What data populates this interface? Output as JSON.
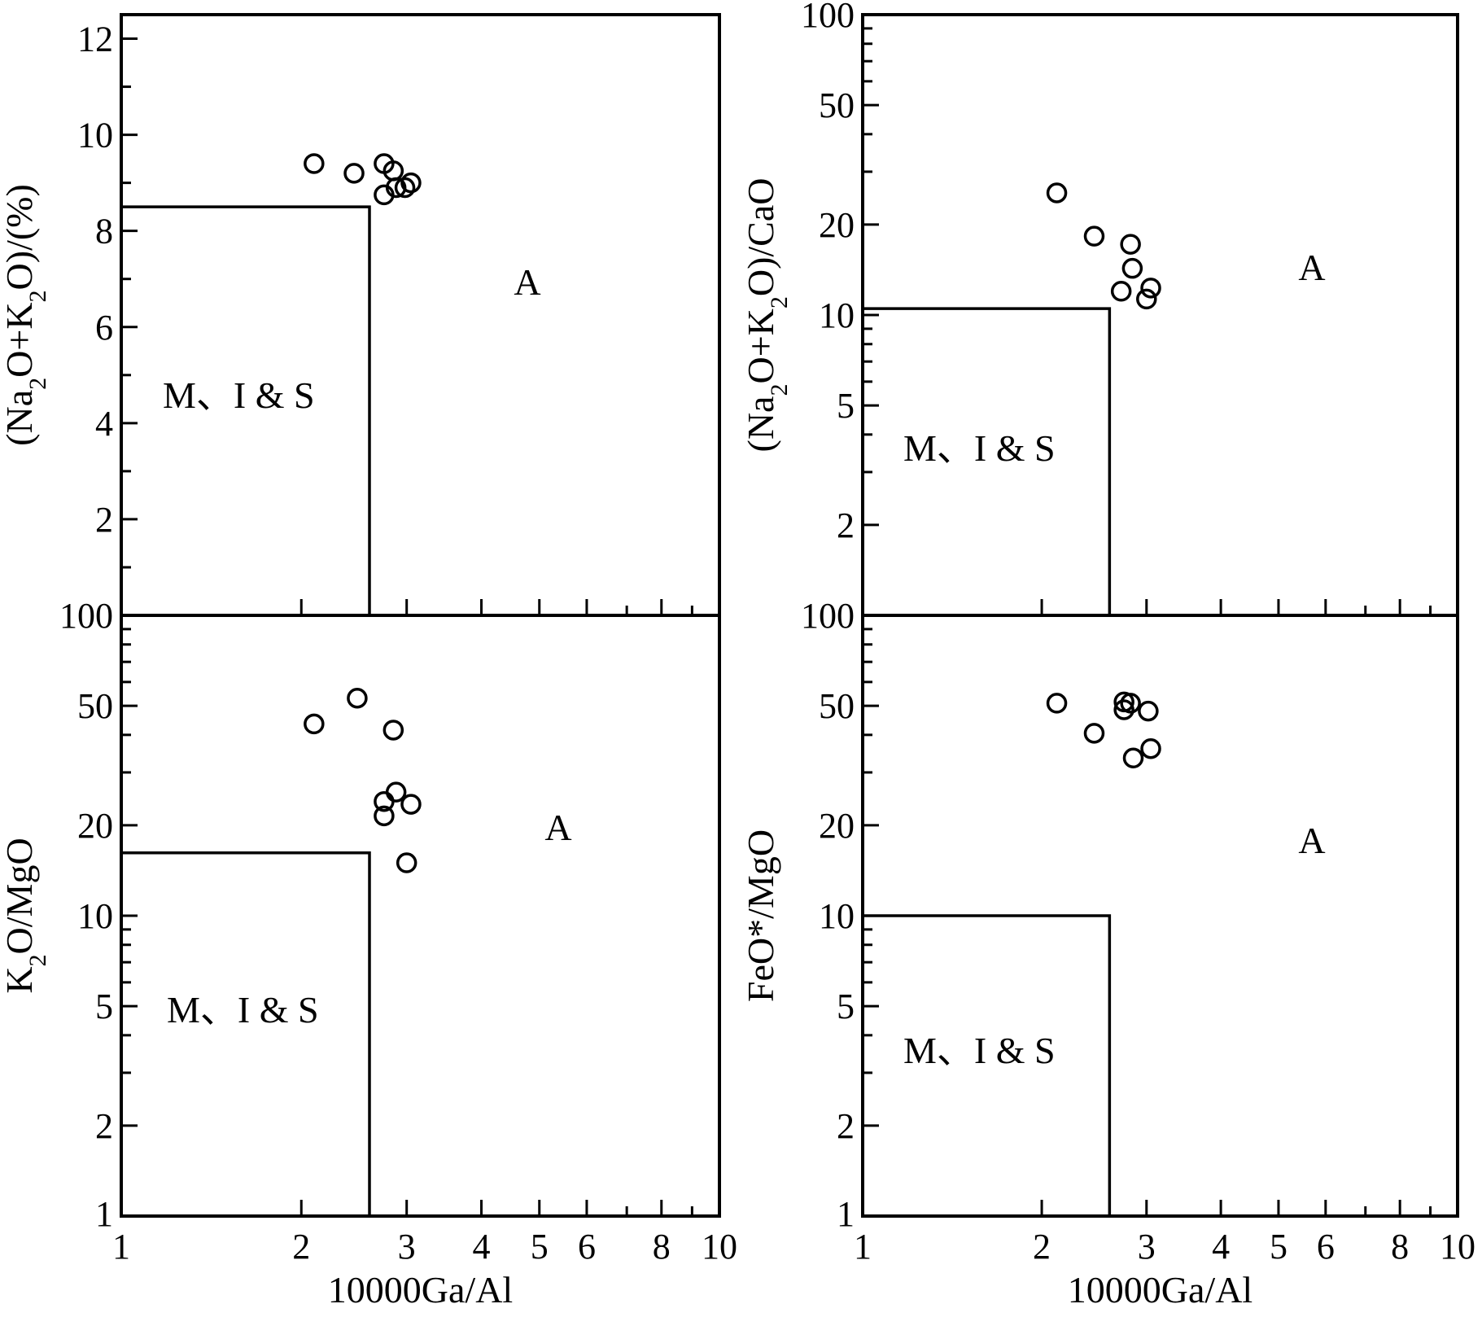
{
  "chart_data": [
    {
      "id": "top-left",
      "type": "scatter",
      "xscale": "log",
      "xlim": [
        1,
        10
      ],
      "yscale": "linear",
      "ylim": [
        0,
        12.5
      ],
      "ylabel": "(Na2O+K2O)/(%)",
      "xticks": [],
      "yticks": [
        {
          "v": 2,
          "label": "2"
        },
        {
          "v": 4,
          "label": "4"
        },
        {
          "v": 6,
          "label": "6"
        },
        {
          "v": 8,
          "label": "8"
        },
        {
          "v": 10,
          "label": "10"
        },
        {
          "v": 12,
          "label": "12"
        }
      ],
      "yminor": [
        1,
        3,
        5,
        7,
        9,
        11
      ],
      "boundary": {
        "x": 2.6,
        "y": 8.5
      },
      "fields": [
        {
          "label": "M、I & S",
          "x": 1.62,
          "y": 4.3
        },
        {
          "label": "A",
          "x": 5.4,
          "y": 6.7
        }
      ],
      "points": [
        {
          "x": 2.1,
          "y": 9.4
        },
        {
          "x": 2.45,
          "y": 9.2
        },
        {
          "x": 2.75,
          "y": 9.4
        },
        {
          "x": 2.85,
          "y": 9.25
        },
        {
          "x": 2.88,
          "y": 8.9
        },
        {
          "x": 2.75,
          "y": 8.75
        },
        {
          "x": 2.98,
          "y": 8.9
        },
        {
          "x": 3.05,
          "y": 9.0
        }
      ]
    },
    {
      "id": "top-right",
      "type": "scatter",
      "xscale": "log",
      "xlim": [
        1,
        10
      ],
      "yscale": "log",
      "ylim": [
        1,
        100
      ],
      "ylabel": "(Na2O+K2O)/CaO",
      "xticks": [],
      "yticks": [
        {
          "v": 2,
          "label": "2"
        },
        {
          "v": 5,
          "label": "5"
        },
        {
          "v": 10,
          "label": "10"
        },
        {
          "v": 20,
          "label": "20"
        },
        {
          "v": 50,
          "label": "50"
        },
        {
          "v": 100,
          "label": "100"
        }
      ],
      "boundary": {
        "x": 2.6,
        "y": 10.5
      },
      "fields": [
        {
          "label": "M、I & S",
          "x": 1.62,
          "y": 3.8
        },
        {
          "label": "A",
          "x": 5.7,
          "y": 13.5
        }
      ],
      "points": [
        {
          "x": 2.12,
          "y": 25.5
        },
        {
          "x": 2.45,
          "y": 18.3
        },
        {
          "x": 2.82,
          "y": 17.2
        },
        {
          "x": 2.84,
          "y": 14.3
        },
        {
          "x": 2.72,
          "y": 12.0
        },
        {
          "x": 3.05,
          "y": 12.3
        },
        {
          "x": 3.0,
          "y": 11.3
        }
      ]
    },
    {
      "id": "bottom-left",
      "type": "scatter",
      "xscale": "log",
      "xlim": [
        1,
        10
      ],
      "yscale": "log",
      "ylim": [
        1,
        100
      ],
      "ylabel": "K2O/MgO",
      "xlabel": "10000Ga/Al",
      "xticks": [
        {
          "v": 1,
          "label": "1"
        },
        {
          "v": 2,
          "label": "2"
        },
        {
          "v": 3,
          "label": "3"
        },
        {
          "v": 4,
          "label": "4"
        },
        {
          "v": 5,
          "label": "5"
        },
        {
          "v": 6,
          "label": "6"
        },
        {
          "v": 8,
          "label": "8"
        },
        {
          "v": 10,
          "label": "10"
        }
      ],
      "yticks": [
        {
          "v": 1,
          "label": "1"
        },
        {
          "v": 2,
          "label": "2"
        },
        {
          "v": 5,
          "label": "5"
        },
        {
          "v": 10,
          "label": "10"
        },
        {
          "v": 20,
          "label": "20"
        },
        {
          "v": 50,
          "label": "50"
        },
        {
          "v": 100,
          "label": "100"
        }
      ],
      "boundary": {
        "x": 2.6,
        "y": 16.2
      },
      "fields": [
        {
          "label": "M、I & S",
          "x": 1.65,
          "y": 4.0
        },
        {
          "label": "A",
          "x": 5.8,
          "y": 17.8
        }
      ],
      "points": [
        {
          "x": 2.1,
          "y": 43.5
        },
        {
          "x": 2.48,
          "y": 53.0
        },
        {
          "x": 2.85,
          "y": 41.5
        },
        {
          "x": 2.88,
          "y": 25.8
        },
        {
          "x": 2.75,
          "y": 24.0
        },
        {
          "x": 2.75,
          "y": 21.5
        },
        {
          "x": 3.05,
          "y": 23.5
        },
        {
          "x": 3.0,
          "y": 15.0
        }
      ]
    },
    {
      "id": "bottom-right",
      "type": "scatter",
      "xscale": "log",
      "xlim": [
        1,
        10
      ],
      "yscale": "log",
      "ylim": [
        1,
        100
      ],
      "ylabel": "FeO*/MgO",
      "xlabel": "10000Ga/Al",
      "xticks": [
        {
          "v": 1,
          "label": "1"
        },
        {
          "v": 2,
          "label": "2"
        },
        {
          "v": 3,
          "label": "3"
        },
        {
          "v": 4,
          "label": "4"
        },
        {
          "v": 5,
          "label": "5"
        },
        {
          "v": 6,
          "label": "6"
        },
        {
          "v": 8,
          "label": "8"
        },
        {
          "v": 10,
          "label": "10"
        }
      ],
      "yticks": [
        {
          "v": 1,
          "label": "1"
        },
        {
          "v": 2,
          "label": "2"
        },
        {
          "v": 5,
          "label": "5"
        },
        {
          "v": 10,
          "label": "10"
        },
        {
          "v": 20,
          "label": "20"
        },
        {
          "v": 50,
          "label": "50"
        },
        {
          "v": 100,
          "label": "100"
        }
      ],
      "boundary": {
        "x": 2.6,
        "y": 10.0
      },
      "fields": [
        {
          "label": "M、I & S",
          "x": 1.62,
          "y": 3.8
        },
        {
          "label": "A",
          "x": 5.7,
          "y": 16.5
        }
      ],
      "points": [
        {
          "x": 2.12,
          "y": 51.0
        },
        {
          "x": 2.45,
          "y": 40.5
        },
        {
          "x": 2.75,
          "y": 51.5
        },
        {
          "x": 2.82,
          "y": 51.0
        },
        {
          "x": 2.75,
          "y": 48.5
        },
        {
          "x": 3.02,
          "y": 48.0
        },
        {
          "x": 2.85,
          "y": 33.5
        },
        {
          "x": 3.05,
          "y": 36.0
        }
      ]
    }
  ]
}
